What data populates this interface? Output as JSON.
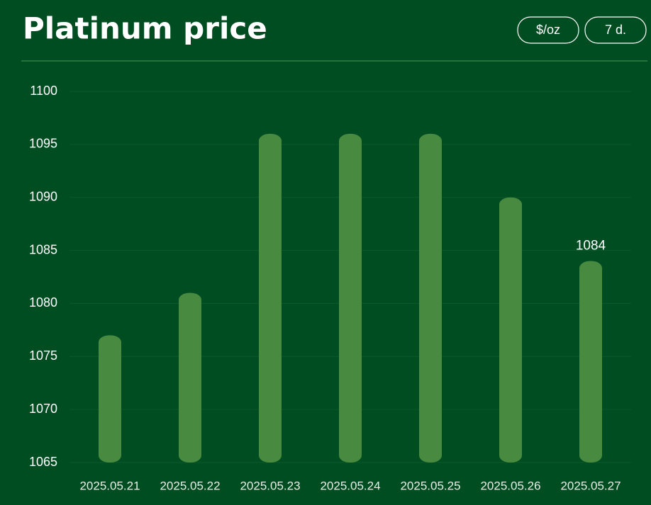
{
  "chart_data": {
    "type": "bar",
    "title": "Platinum price",
    "controls": [
      "$/oz",
      "7 d."
    ],
    "categories": [
      "2025.05.21",
      "2025.05.22",
      "2025.05.23",
      "2025.05.24",
      "2025.05.25",
      "2025.05.26",
      "2025.05.27"
    ],
    "values": [
      1077,
      1081,
      1096,
      1096,
      1096,
      1090,
      1084
    ],
    "color": "#478a40",
    "data_label": "last",
    "ylim": [
      1065,
      1100
    ],
    "yticks": [
      1065,
      1070,
      1075,
      1080,
      1085,
      1090,
      1095,
      1100
    ],
    "grid": true
  }
}
